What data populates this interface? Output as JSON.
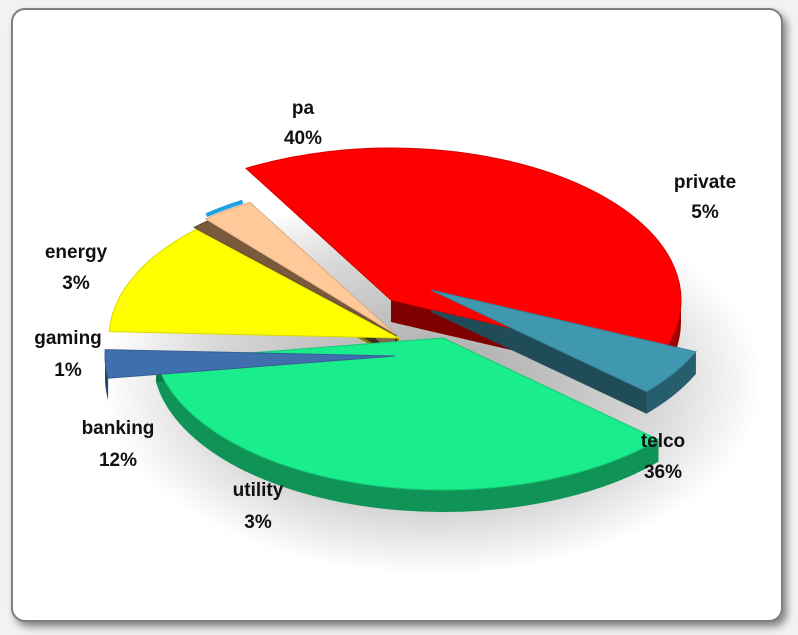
{
  "chart_data": {
    "type": "pie",
    "style": "3d-exploded",
    "slices": [
      {
        "category": "pa",
        "value": 40,
        "pct_label": "40%",
        "color": "#ff0000"
      },
      {
        "category": "private",
        "value": 5,
        "pct_label": "5%",
        "color": "#3f98b0"
      },
      {
        "category": "telco",
        "value": 36,
        "pct_label": "36%",
        "color": "#1aed8b"
      },
      {
        "category": "utility",
        "value": 3,
        "pct_label": "3%",
        "color": "#3f6fad"
      },
      {
        "category": "banking",
        "value": 12,
        "pct_label": "12%",
        "color": "#ffff00"
      },
      {
        "category": "gaming",
        "value": 1,
        "pct_label": "1%",
        "color": "#7a5a3c"
      },
      {
        "category": "energy",
        "value": 3,
        "pct_label": "3%",
        "color": "#ffc999"
      }
    ],
    "extra_sliver_color": "#1e9fe0",
    "legend": "none",
    "title": ""
  }
}
